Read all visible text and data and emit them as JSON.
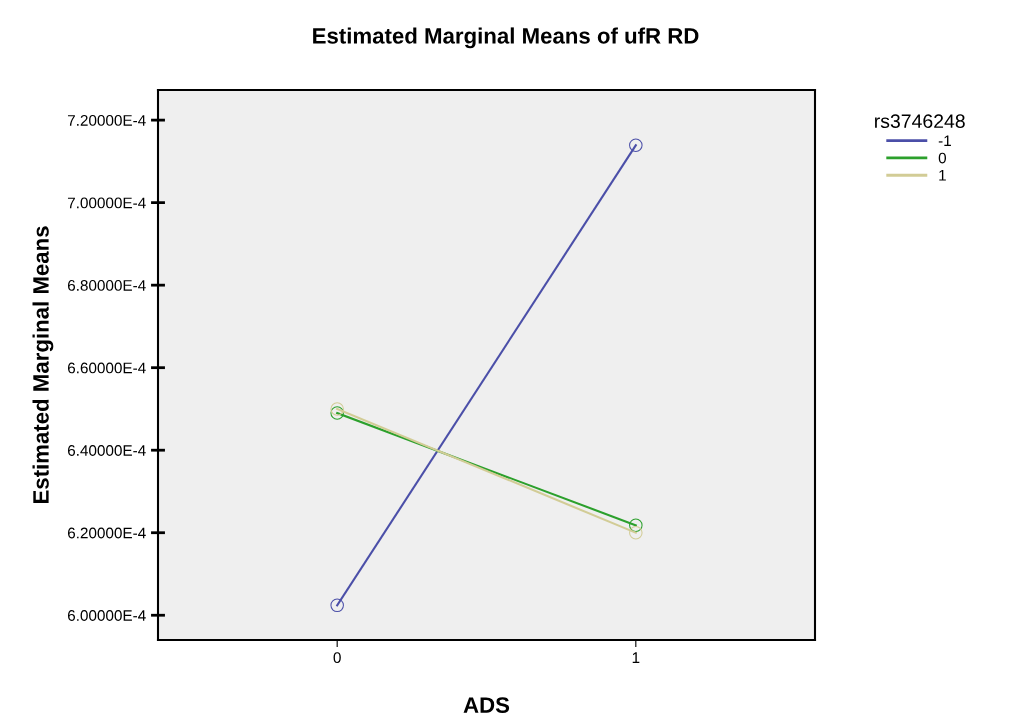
{
  "chart_data": {
    "type": "line",
    "title": "Estimated Marginal Means of ufR RD",
    "xlabel": "ADS",
    "ylabel": "Estimated Marginal Means",
    "legend_title": "rs3746248",
    "categories": [
      "0",
      "1"
    ],
    "series": [
      {
        "name": "-1",
        "color": "#4b4fa8",
        "values": [
          0.0006024,
          0.0007139
        ]
      },
      {
        "name": "0",
        "color": "#2ca02c",
        "values": [
          0.000649,
          0.0006218
        ]
      },
      {
        "name": "1",
        "color": "#d2cc96",
        "values": [
          0.00065,
          0.00062
        ]
      }
    ],
    "ylim": [
      0.000594,
      0.0007273
    ],
    "yticks": [
      {
        "value": 0.0006,
        "label": "6.00000E-4"
      },
      {
        "value": 0.00062,
        "label": "6.20000E-4"
      },
      {
        "value": 0.00064,
        "label": "6.40000E-4"
      },
      {
        "value": 0.00066,
        "label": "6.60000E-4"
      },
      {
        "value": 0.00068,
        "label": "6.80000E-4"
      },
      {
        "value": 0.0007,
        "label": "7.00000E-4"
      },
      {
        "value": 0.00072,
        "label": "7.20000E-4"
      }
    ],
    "marker": "circle",
    "line_style": "solid",
    "legend": "right",
    "grid": false
  }
}
